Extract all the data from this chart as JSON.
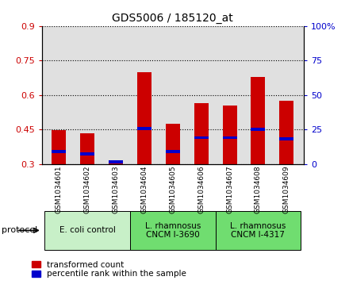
{
  "title": "GDS5006 / 185120_at",
  "samples": [
    "GSM1034601",
    "GSM1034602",
    "GSM1034603",
    "GSM1034604",
    "GSM1034605",
    "GSM1034606",
    "GSM1034607",
    "GSM1034608",
    "GSM1034609"
  ],
  "red_values": [
    0.449,
    0.435,
    0.315,
    0.7,
    0.475,
    0.565,
    0.555,
    0.68,
    0.575
  ],
  "blue_values": [
    0.355,
    0.345,
    0.31,
    0.455,
    0.355,
    0.415,
    0.415,
    0.45,
    0.41
  ],
  "bar_bottom": 0.3,
  "ylim_left": [
    0.3,
    0.9
  ],
  "ylim_right": [
    0,
    100
  ],
  "yticks_left": [
    0.3,
    0.45,
    0.6,
    0.75,
    0.9
  ],
  "yticks_right": [
    0,
    25,
    50,
    75,
    100
  ],
  "ytick_labels_left": [
    "0.3",
    "0.45",
    "0.6",
    "0.75",
    "0.9"
  ],
  "ytick_labels_right": [
    "0",
    "25",
    "50",
    "75",
    "100%"
  ],
  "groups": [
    {
      "label": "E. coli control",
      "indices": [
        0,
        1,
        2
      ],
      "color": "#c8f0c8"
    },
    {
      "label": "L. rhamnosus\nCNCM I-3690",
      "indices": [
        3,
        4,
        5
      ],
      "color": "#70dd70"
    },
    {
      "label": "L. rhamnosus\nCNCM I-4317",
      "indices": [
        6,
        7,
        8
      ],
      "color": "#70dd70"
    }
  ],
  "red_color": "#cc0000",
  "blue_color": "#0000cc",
  "bar_width": 0.5,
  "legend_items": [
    "transformed count",
    "percentile rank within the sample"
  ],
  "protocol_label": "protocol",
  "background_color": "#ffffff",
  "bar_area_color": "#e0e0e0",
  "left_tick_color": "#cc0000",
  "right_tick_color": "#0000cc"
}
